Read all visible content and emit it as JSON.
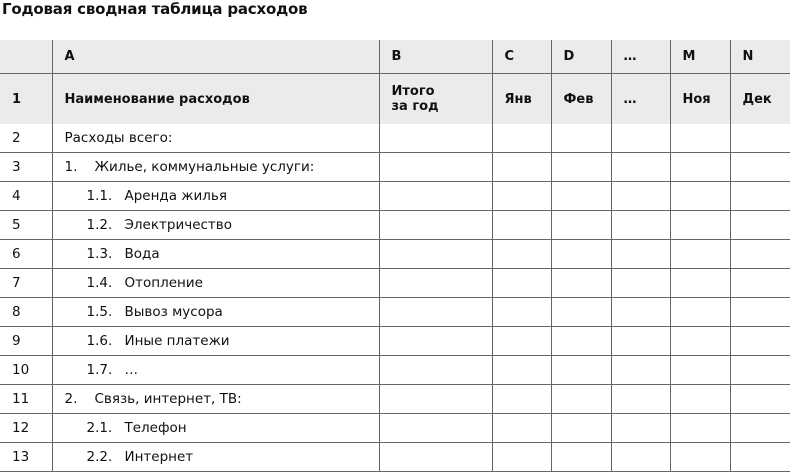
{
  "title": "Годовая сводная таблица расходов",
  "columns": [
    "",
    "A",
    "B",
    "C",
    "D",
    "…",
    "M",
    "N"
  ],
  "header": {
    "row": "1",
    "name": "Наименование расходов",
    "total_l1": "Итого",
    "total_l2": "за год",
    "months": [
      "Янв",
      "Фев",
      "…",
      "Ноя",
      "Дек"
    ]
  },
  "rows": [
    {
      "n": "2",
      "num": "",
      "text": "Расходы всего:",
      "level": 0
    },
    {
      "n": "3",
      "num": "1.",
      "text": "Жилье, коммунальные услуги:",
      "level": 1
    },
    {
      "n": "4",
      "num": "1.1.",
      "text": "Аренда жилья",
      "level": 2
    },
    {
      "n": "5",
      "num": "1.2.",
      "text": "Электричество",
      "level": 2
    },
    {
      "n": "6",
      "num": "1.3.",
      "text": "Вода",
      "level": 2
    },
    {
      "n": "7",
      "num": "1.4.",
      "text": "Отопление",
      "level": 2
    },
    {
      "n": "8",
      "num": "1.5.",
      "text": "Вывоз мусора",
      "level": 2
    },
    {
      "n": "9",
      "num": "1.6.",
      "text": "Иные платежи",
      "level": 2
    },
    {
      "n": "10",
      "num": "1.7.",
      "text": "…",
      "level": 2
    },
    {
      "n": "11",
      "num": "2.",
      "text": "Связь, интернет, ТВ:",
      "level": 1
    },
    {
      "n": "12",
      "num": "2.1.",
      "text": "Телефон",
      "level": 2
    },
    {
      "n": "13",
      "num": "2.2.",
      "text": "Интернет",
      "level": 2
    }
  ]
}
